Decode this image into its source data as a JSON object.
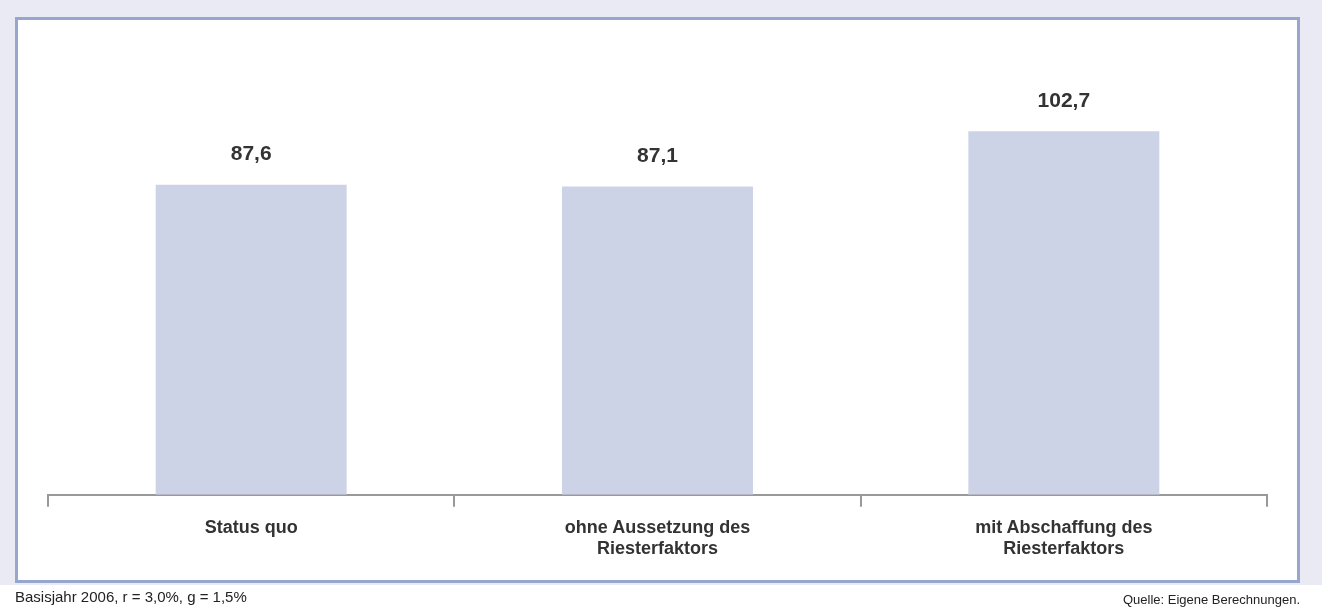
{
  "chart_data": {
    "type": "bar",
    "categories": [
      "Status quo",
      "ohne Aussetzung des Riesterfaktors",
      "mit Abschaffung des Riesterfaktors"
    ],
    "values": [
      87.6,
      87.1,
      102.7
    ],
    "color": "#cdd3e6",
    "value_labels": [
      "87,6",
      "87,1",
      "102,7"
    ],
    "grid": false,
    "legend": false,
    "tick_labels": "x",
    "annotations": [
      "Basisjahr 2006, r = 3,0%, g = 1,5%",
      "Quelle: Eigene Berechnungen."
    ]
  }
}
